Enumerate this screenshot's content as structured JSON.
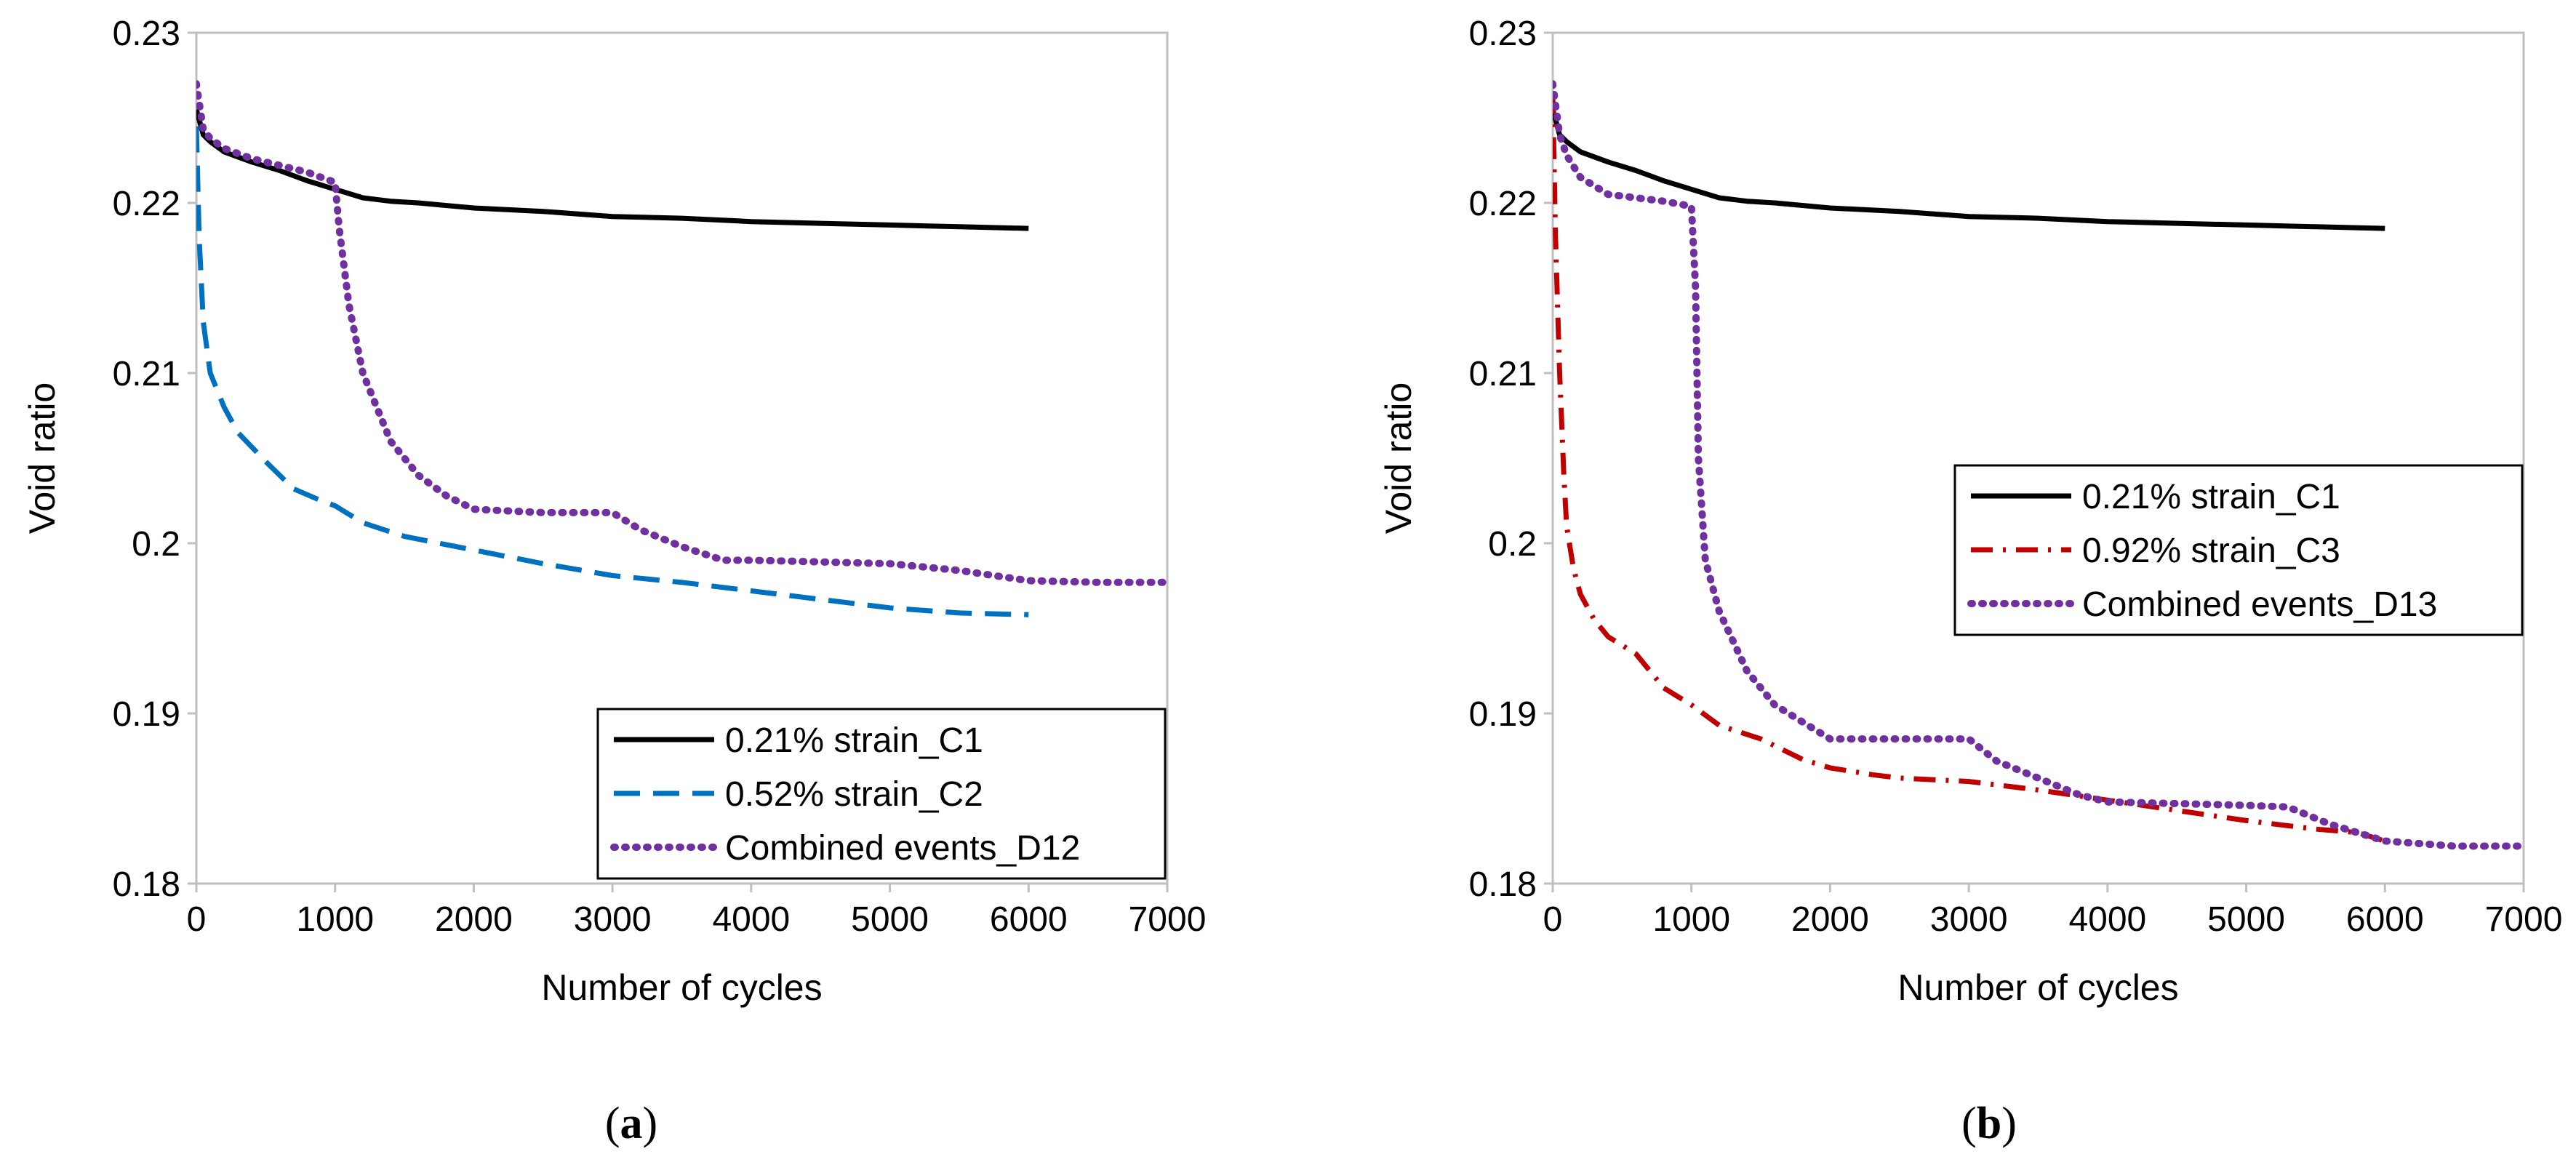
{
  "chart_data": [
    {
      "type": "line",
      "panel_label": "a",
      "xlabel": "Number of cycles",
      "ylabel": "Void ratio",
      "xlim": [
        0,
        7000
      ],
      "ylim": [
        0.18,
        0.23
      ],
      "xticks": [
        0,
        1000,
        2000,
        3000,
        4000,
        5000,
        6000,
        7000
      ],
      "yticks": [
        0.18,
        0.19,
        0.2,
        0.21,
        0.22,
        0.23
      ],
      "xtick_labels": [
        "0",
        "1000",
        "2000",
        "3000",
        "4000",
        "5000",
        "6000",
        "7000"
      ],
      "ytick_labels": [
        "0.18",
        "0.19",
        "0.2",
        "0.21",
        "0.22",
        "0.23"
      ],
      "legend_position": "bottom-right",
      "series": [
        {
          "name": "0.21% strain_C1",
          "color": "#000000",
          "dash": "solid",
          "x": [
            0,
            50,
            100,
            200,
            400,
            600,
            800,
            1000,
            1200,
            1400,
            1600,
            2000,
            2500,
            3000,
            3500,
            4000,
            4500,
            5000,
            5500,
            6000
          ],
          "y": [
            0.2255,
            0.224,
            0.2236,
            0.223,
            0.2224,
            0.2219,
            0.2213,
            0.2208,
            0.2203,
            0.2201,
            0.22,
            0.2197,
            0.2195,
            0.2192,
            0.2191,
            0.2189,
            0.2188,
            0.2187,
            0.2186,
            0.2185
          ]
        },
        {
          "name": "0.52% strain_C2",
          "color": "#0070C0",
          "dash": "dashed",
          "x": [
            0,
            20,
            50,
            100,
            200,
            300,
            500,
            700,
            900,
            1000,
            1200,
            1500,
            2000,
            2500,
            3000,
            3500,
            4000,
            4500,
            5000,
            5500,
            6000
          ],
          "y": [
            0.2245,
            0.218,
            0.213,
            0.21,
            0.208,
            0.2065,
            0.2048,
            0.2032,
            0.2025,
            0.2022,
            0.2012,
            0.2004,
            0.1996,
            0.1988,
            0.1981,
            0.1977,
            0.1972,
            0.1967,
            0.1962,
            0.1959,
            0.1958
          ]
        },
        {
          "name": "Combined events_D12",
          "color": "#7030A0",
          "dash": "dotted",
          "x": [
            0,
            50,
            100,
            200,
            400,
            600,
            800,
            1000,
            1030,
            1100,
            1200,
            1400,
            1600,
            1800,
            2000,
            2500,
            3000,
            3200,
            3500,
            3800,
            4000,
            4500,
            5000,
            5500,
            6000,
            6500,
            7000
          ],
          "y": [
            0.227,
            0.2243,
            0.2238,
            0.2232,
            0.2226,
            0.2222,
            0.2218,
            0.2212,
            0.2185,
            0.214,
            0.21,
            0.206,
            0.204,
            0.2028,
            0.202,
            0.2018,
            0.2018,
            0.2008,
            0.1998,
            0.199,
            0.199,
            0.1989,
            0.1988,
            0.1984,
            0.1978,
            0.1977,
            0.1977
          ]
        }
      ]
    },
    {
      "type": "line",
      "panel_label": "b",
      "xlabel": "Number of cycles",
      "ylabel": "Void ratio",
      "xlim": [
        0,
        7000
      ],
      "ylim": [
        0.18,
        0.23
      ],
      "xticks": [
        0,
        1000,
        2000,
        3000,
        4000,
        5000,
        6000,
        7000
      ],
      "yticks": [
        0.18,
        0.19,
        0.2,
        0.21,
        0.22,
        0.23
      ],
      "xtick_labels": [
        "0",
        "1000",
        "2000",
        "3000",
        "4000",
        "5000",
        "6000",
        "7000"
      ],
      "ytick_labels": [
        "0.18",
        "0.19",
        "0.2",
        "0.21",
        "0.22",
        "0.23"
      ],
      "legend_position": "center-right",
      "series": [
        {
          "name": "0.21% strain_C1",
          "color": "#000000",
          "dash": "solid",
          "x": [
            0,
            50,
            100,
            200,
            400,
            600,
            800,
            1000,
            1200,
            1400,
            1600,
            2000,
            2500,
            3000,
            3500,
            4000,
            4500,
            5000,
            5500,
            6000
          ],
          "y": [
            0.2255,
            0.224,
            0.2236,
            0.223,
            0.2224,
            0.2219,
            0.2213,
            0.2208,
            0.2203,
            0.2201,
            0.22,
            0.2197,
            0.2195,
            0.2192,
            0.2191,
            0.2189,
            0.2188,
            0.2187,
            0.2186,
            0.2185
          ]
        },
        {
          "name": "0.92% strain_C3",
          "color": "#C00000",
          "dash": "dashdot",
          "x": [
            0,
            20,
            50,
            80,
            100,
            150,
            200,
            300,
            400,
            500,
            600,
            700,
            800,
            900,
            1000,
            1200,
            1500,
            1800,
            2000,
            2300,
            2500,
            3000,
            3500,
            4000,
            4500,
            5000,
            5500,
            5800,
            6000
          ],
          "y": [
            0.2265,
            0.218,
            0.21,
            0.204,
            0.201,
            0.1985,
            0.197,
            0.1955,
            0.1945,
            0.194,
            0.1935,
            0.1925,
            0.1915,
            0.191,
            0.1905,
            0.1893,
            0.1885,
            0.1873,
            0.1868,
            0.1864,
            0.1862,
            0.186,
            0.1855,
            0.1849,
            0.1843,
            0.1837,
            0.1832,
            0.183,
            0.1825
          ]
        },
        {
          "name": "Combined events_D13",
          "color": "#7030A0",
          "dash": "dotted",
          "x": [
            0,
            50,
            100,
            200,
            400,
            600,
            800,
            1000,
            1030,
            1050,
            1100,
            1200,
            1400,
            1600,
            1800,
            2000,
            2500,
            3000,
            3200,
            3500,
            3800,
            4000,
            4500,
            5000,
            5300,
            5600,
            6000,
            6500,
            7000
          ],
          "y": [
            0.227,
            0.224,
            0.2228,
            0.2215,
            0.2205,
            0.2203,
            0.2201,
            0.2198,
            0.215,
            0.205,
            0.199,
            0.196,
            0.1925,
            0.1905,
            0.1895,
            0.1885,
            0.1885,
            0.1885,
            0.1872,
            0.1862,
            0.1852,
            0.1848,
            0.1847,
            0.1846,
            0.1845,
            0.1835,
            0.1825,
            0.1822,
            0.1822
          ]
        }
      ]
    }
  ]
}
